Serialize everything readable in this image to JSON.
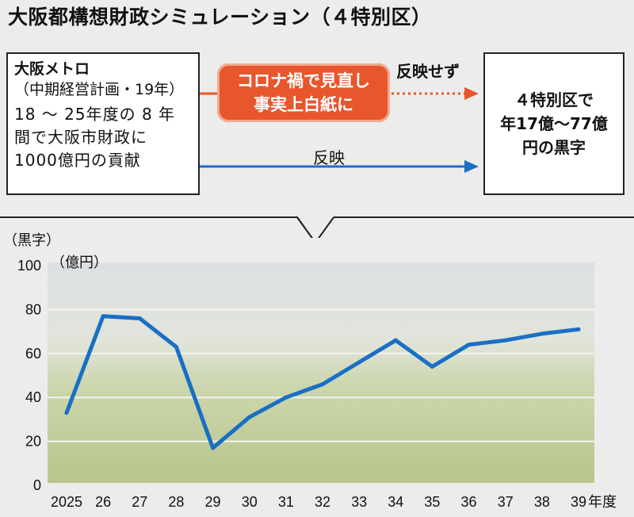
{
  "title": "大阪都構想財政シミュレーション（４特別区）",
  "metro": {
    "name": "大阪メトロ",
    "plan": "（中期経営計画・19年）",
    "desc": [
      "18 ～ 25年度の 8 年",
      "間で大阪市財政に",
      "1000億円の貢献"
    ]
  },
  "corona": [
    "コロナ禍で見直し",
    "事実上白紙に"
  ],
  "not_reflected": "反映せず",
  "reflected": "反映",
  "result": [
    "４特別区で",
    "年17億～77億",
    "円の黒字"
  ],
  "colors": {
    "orange": "#e8562d",
    "blue": "#1a6fc4"
  },
  "chart_data": {
    "type": "line",
    "ylabel": "（黒字）",
    "yunit": "（億円）",
    "ylim": [
      0,
      100
    ],
    "yticks": [
      0,
      20,
      40,
      60,
      80,
      100
    ],
    "x_tick_labels": [
      "2025",
      "26",
      "27",
      "28",
      "29",
      "30",
      "31",
      "32",
      "33",
      "34",
      "35",
      "36",
      "37",
      "38",
      "39"
    ],
    "x_unit": "年度",
    "series": [
      {
        "values": [
          33,
          77,
          76,
          63,
          17,
          31,
          40,
          46,
          56,
          66,
          54,
          64,
          66,
          69,
          71
        ]
      }
    ],
    "grid": true,
    "line_color": "#1a6fc4"
  }
}
